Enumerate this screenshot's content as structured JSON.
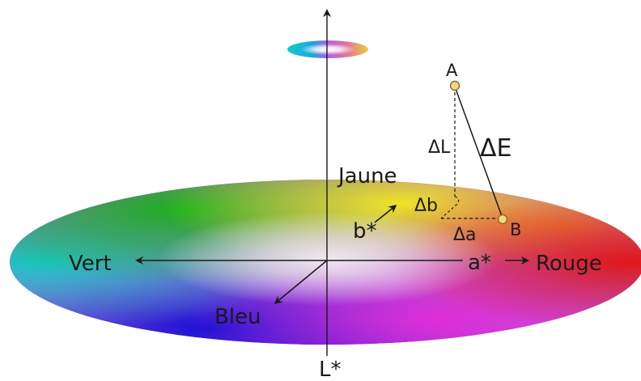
{
  "diagram": {
    "axes": {
      "vertical": "L*",
      "a_axis": "a*",
      "b_axis": "b*"
    },
    "directions": {
      "green": "Vert",
      "red": "Rouge",
      "yellow": "Jaune",
      "blue": "Bleu"
    },
    "points": {
      "a": "A",
      "b": "B"
    },
    "deltas": {
      "lightness": "ΔL",
      "a": "Δa",
      "b": "Δb",
      "total": "ΔE"
    },
    "colors": {
      "green": "#1fb233",
      "cyan": "#1fc8c8",
      "blue": "#1a1fd6",
      "magenta": "#d12fd6",
      "red": "#e0261e",
      "yellow": "#e8e22a",
      "point_fill": "#f4d58a",
      "point_stroke": "#8a6a1e",
      "line": "#1a1a1a"
    }
  }
}
